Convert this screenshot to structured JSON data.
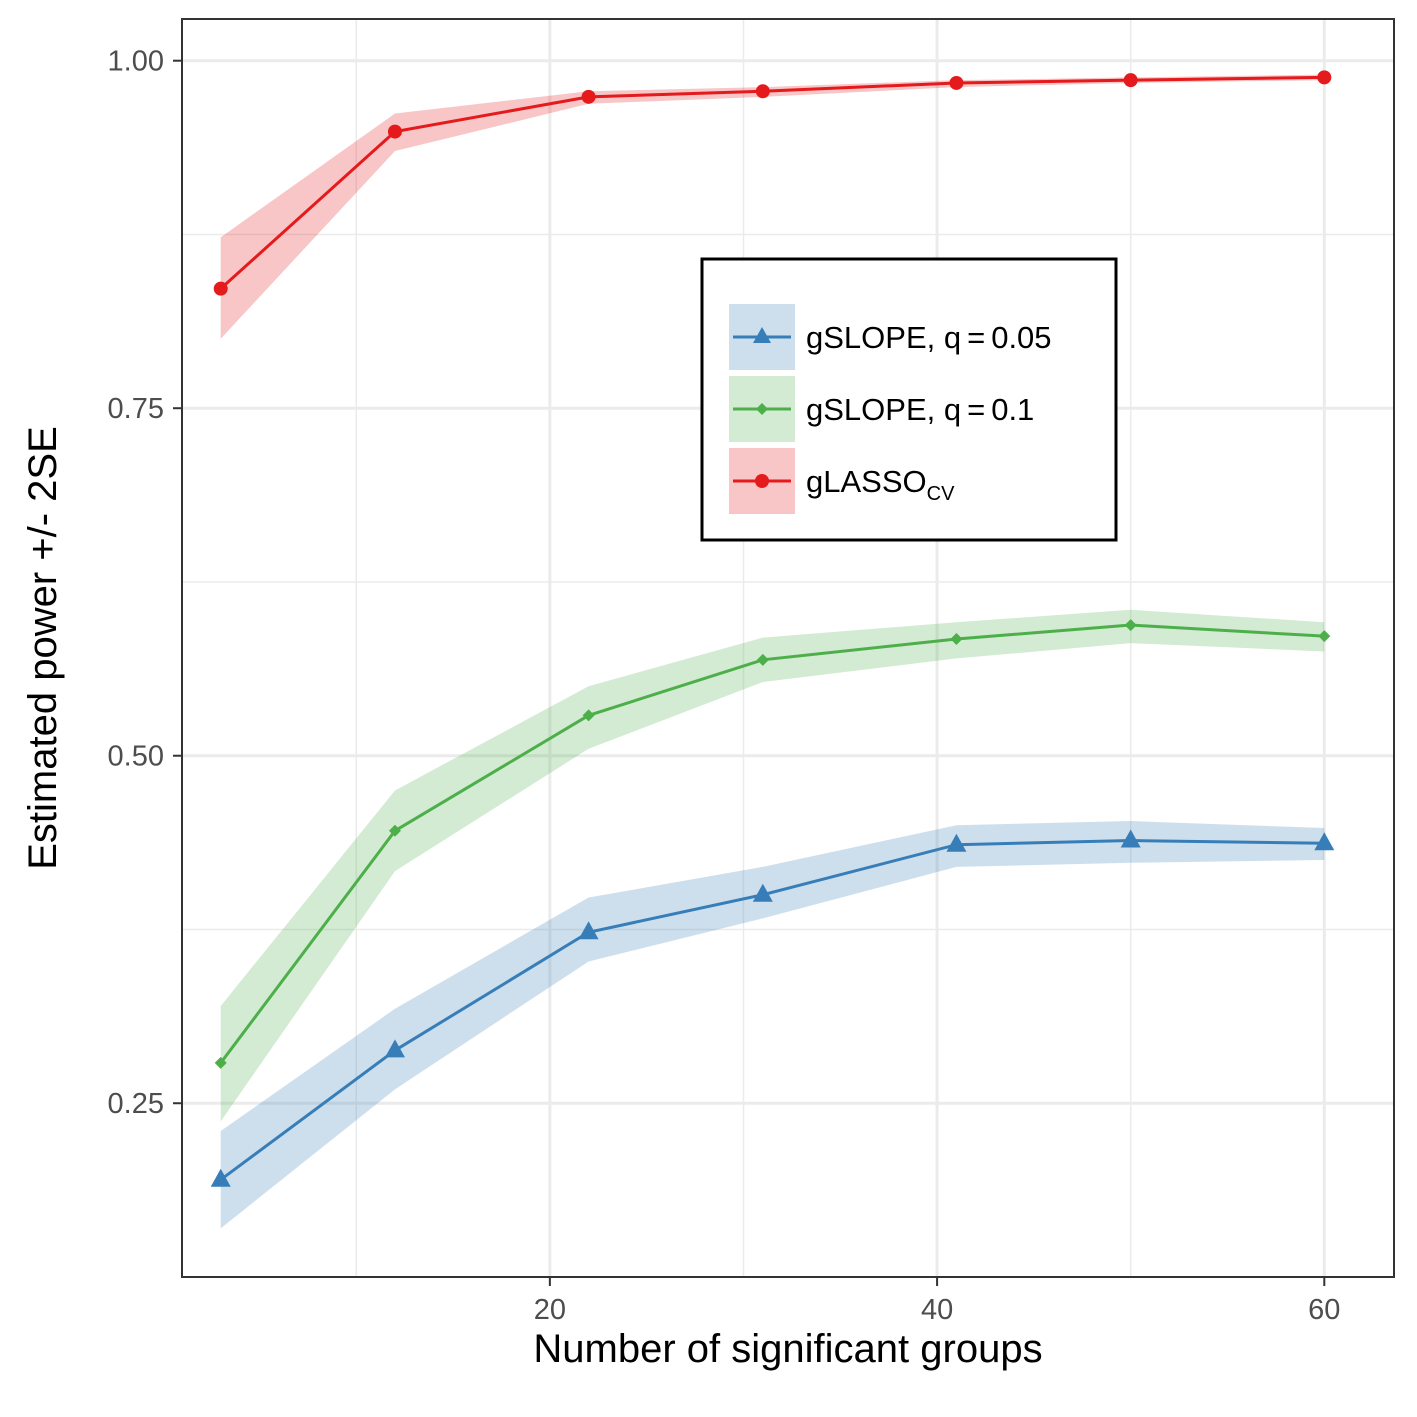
{
  "chart_data": {
    "type": "line",
    "title": "",
    "xlabel": "Number of significant groups",
    "ylabel": "Estimated power +/- 2SE",
    "xlim": [
      1.0,
      63.6
    ],
    "ylim": [
      0.125,
      1.03
    ],
    "x_ticks": [
      20,
      40,
      60
    ],
    "x_tick_labels": [
      "20",
      "40",
      "60"
    ],
    "y_ticks": [
      0.25,
      0.5,
      0.75,
      1.0
    ],
    "y_tick_labels": [
      "0.25",
      "0.50",
      "0.75",
      "1.00"
    ],
    "grid": true,
    "legend_position": "inside-top-right",
    "x": [
      3,
      12,
      22,
      31,
      41,
      50,
      60
    ],
    "series": [
      {
        "name": "gSLOPE, q = 0.05",
        "name_main": "gSLOPE, q",
        "name_eq": "=",
        "name_val": "0.05",
        "color": "#377EB8",
        "marker": "triangle",
        "values": [
          0.195,
          0.288,
          0.373,
          0.4,
          0.436,
          0.439,
          0.437
        ],
        "lower": [
          0.16,
          0.26,
          0.352,
          0.383,
          0.42,
          0.423,
          0.425
        ],
        "upper": [
          0.23,
          0.318,
          0.398,
          0.42,
          0.45,
          0.453,
          0.448
        ]
      },
      {
        "name": "gSLOPE, q = 0.1",
        "name_main": "gSLOPE, q",
        "name_eq": "=",
        "name_val": "0.1",
        "color": "#4DAF4A",
        "marker": "diamond",
        "values": [
          0.279,
          0.446,
          0.529,
          0.569,
          0.584,
          0.594,
          0.586
        ],
        "lower": [
          0.237,
          0.417,
          0.505,
          0.553,
          0.57,
          0.581,
          0.575
        ],
        "upper": [
          0.32,
          0.475,
          0.55,
          0.585,
          0.596,
          0.605,
          0.596
        ]
      },
      {
        "name": "gLASSOCV",
        "name_main": "gLASSO",
        "name_sub": "CV",
        "color": "#E41A1C",
        "marker": "circle",
        "values": [
          0.836,
          0.949,
          0.974,
          0.978,
          0.984,
          0.986,
          0.988
        ],
        "lower": [
          0.8,
          0.935,
          0.969,
          0.974,
          0.981,
          0.984,
          0.986
        ],
        "upper": [
          0.873,
          0.962,
          0.978,
          0.981,
          0.986,
          0.988,
          0.99
        ]
      }
    ]
  }
}
